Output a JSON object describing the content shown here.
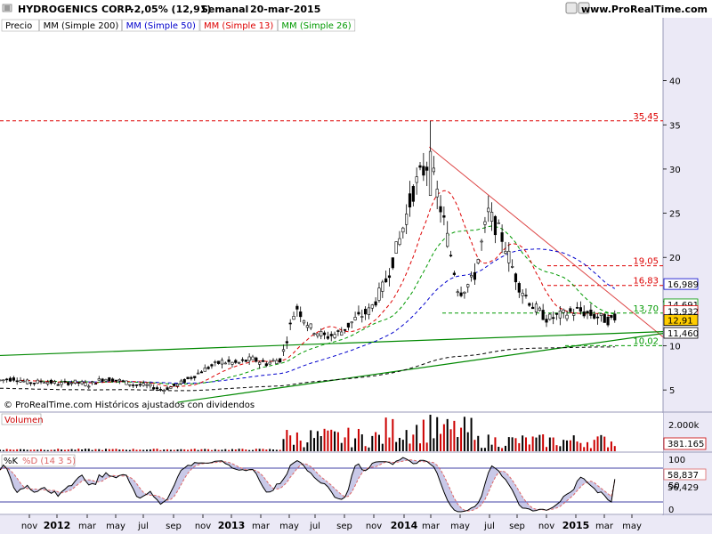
{
  "header": {
    "title": "HYDROGENICS CORP.",
    "change": "-2,05% (12,91)",
    "period": "Semanal",
    "date": "20-mar-2015",
    "site": "www.ProRealTime.com"
  },
  "legend": [
    {
      "label": "Precio",
      "color": "#000000"
    },
    {
      "label": "MM (Simple 200)",
      "color": "#000000"
    },
    {
      "label": "MM (Simple 50)",
      "color": "#0000cc"
    },
    {
      "label": "MM (Simple 13)",
      "color": "#dd0000"
    },
    {
      "label": "MM (Simple 26)",
      "color": "#009900"
    }
  ],
  "footer_note": "© ProRealTime.com  Históricos ajustados con dividendos",
  "volume_panel": {
    "label": "Volumen",
    "axis_label": "2.000k",
    "last_value": "381.165"
  },
  "stoch_panel": {
    "label_k": "%K",
    "label_d": "%D (14 3 5)",
    "axis_ticks": [
      "100",
      "50",
      "0"
    ],
    "k_value": "58,837",
    "d_value": "56,429"
  },
  "price_axis": {
    "ticks": [
      5,
      10,
      15,
      20,
      25,
      30,
      35,
      40
    ],
    "ylim": [
      2.6,
      45.4
    ]
  },
  "value_boxes": [
    {
      "text": "16,989",
      "color": "#0000cc",
      "y": 16.989
    },
    {
      "text": "14,691",
      "color": "#009900",
      "y": 14.691
    },
    {
      "text": "13,932",
      "color": "#dd0000",
      "y": 13.932
    },
    {
      "text": "12,91",
      "color": "#000000",
      "y": 12.91,
      "fill": "#ffcc00"
    },
    {
      "text": "11,460",
      "color": "#000000",
      "y": 11.46
    }
  ],
  "levels": [
    {
      "text": "35,45",
      "value": 35.45,
      "color": "#dd0000"
    },
    {
      "text": "19,05",
      "value": 19.05,
      "color": "#dd0000"
    },
    {
      "text": "16,83",
      "value": 16.83,
      "color": "#dd0000"
    },
    {
      "text": "13,70",
      "value": 13.7,
      "color": "#009900"
    },
    {
      "text": "10,02",
      "value": 10.02,
      "color": "#009900"
    }
  ],
  "x_axis": [
    {
      "label": "nov",
      "year": false
    },
    {
      "label": "2012",
      "year": true
    },
    {
      "label": "mar",
      "year": false
    },
    {
      "label": "may",
      "year": false
    },
    {
      "label": "jul",
      "year": false
    },
    {
      "label": "sep",
      "year": false
    },
    {
      "label": "nov",
      "year": false
    },
    {
      "label": "2013",
      "year": true
    },
    {
      "label": "mar",
      "year": false
    },
    {
      "label": "may",
      "year": false
    },
    {
      "label": "jul",
      "year": false
    },
    {
      "label": "sep",
      "year": false
    },
    {
      "label": "nov",
      "year": false
    },
    {
      "label": "2014",
      "year": true
    },
    {
      "label": "mar",
      "year": false
    },
    {
      "label": "may",
      "year": false
    },
    {
      "label": "jul",
      "year": false
    },
    {
      "label": "sep",
      "year": false
    },
    {
      "label": "nov",
      "year": false
    },
    {
      "label": "2015",
      "year": true
    },
    {
      "label": "mar",
      "year": false
    },
    {
      "label": "may",
      "year": false
    }
  ],
  "chart_data": {
    "type": "candlestick",
    "title": "HYDROGENICS CORP.",
    "timeframe": "weekly",
    "x_range": [
      "2011-10",
      "2015-06"
    ],
    "ylim": [
      2.6,
      45.4
    ],
    "grid": false,
    "close_series": [
      {
        "date": "2011-10",
        "close": 6.1
      },
      {
        "date": "2011-11",
        "close": 6.3
      },
      {
        "date": "2011-12",
        "close": 5.8
      },
      {
        "date": "2012-01",
        "close": 6.0
      },
      {
        "date": "2012-02",
        "close": 5.7
      },
      {
        "date": "2012-03",
        "close": 5.9
      },
      {
        "date": "2012-04",
        "close": 5.6
      },
      {
        "date": "2012-05",
        "close": 6.3
      },
      {
        "date": "2012-06",
        "close": 6.1
      },
      {
        "date": "2012-07",
        "close": 5.6
      },
      {
        "date": "2012-08",
        "close": 5.5
      },
      {
        "date": "2012-09",
        "close": 5.0
      },
      {
        "date": "2012-10",
        "close": 5.6
      },
      {
        "date": "2012-11",
        "close": 6.5
      },
      {
        "date": "2012-12",
        "close": 7.5
      },
      {
        "date": "2013-01",
        "close": 8.2
      },
      {
        "date": "2013-02",
        "close": 8.0
      },
      {
        "date": "2013-03",
        "close": 8.5
      },
      {
        "date": "2013-04",
        "close": 8.0
      },
      {
        "date": "2013-05",
        "close": 8.5
      },
      {
        "date": "2013-06",
        "close": 14.5
      },
      {
        "date": "2013-07",
        "close": 12.0
      },
      {
        "date": "2013-08",
        "close": 11.0
      },
      {
        "date": "2013-09",
        "close": 11.5
      },
      {
        "date": "2013-10",
        "close": 13.0
      },
      {
        "date": "2013-11",
        "close": 14.0
      },
      {
        "date": "2013-12",
        "close": 17.0
      },
      {
        "date": "2014-01",
        "close": 22.0
      },
      {
        "date": "2014-02",
        "close": 28.0
      },
      {
        "date": "2014-03",
        "close": 31.0
      },
      {
        "date": "2014-04",
        "close": 24.0
      },
      {
        "date": "2014-05",
        "close": 16.0
      },
      {
        "date": "2014-06",
        "close": 17.5
      },
      {
        "date": "2014-07",
        "close": 25.0
      },
      {
        "date": "2014-08",
        "close": 22.0
      },
      {
        "date": "2014-09",
        "close": 17.0
      },
      {
        "date": "2014-10",
        "close": 14.5
      },
      {
        "date": "2014-11",
        "close": 13.0
      },
      {
        "date": "2014-12",
        "close": 13.5
      },
      {
        "date": "2015-01",
        "close": 14.0
      },
      {
        "date": "2015-02",
        "close": 13.5
      },
      {
        "date": "2015-03",
        "close": 12.91
      }
    ],
    "series": [
      {
        "name": "MM (Simple 200)",
        "last": 11.46
      },
      {
        "name": "MM (Simple 50)",
        "last": 16.989
      },
      {
        "name": "MM (Simple 26)",
        "last": 14.691
      },
      {
        "name": "MM (Simple 13)",
        "last": 13.932
      }
    ],
    "volume": {
      "unit": "k",
      "last": 381.165,
      "axis_max_label": 2000
    },
    "stochastic": {
      "k_last": 58.837,
      "d_last": 56.429,
      "ylim": [
        0,
        100
      ],
      "levels": [
        20,
        80
      ]
    }
  }
}
